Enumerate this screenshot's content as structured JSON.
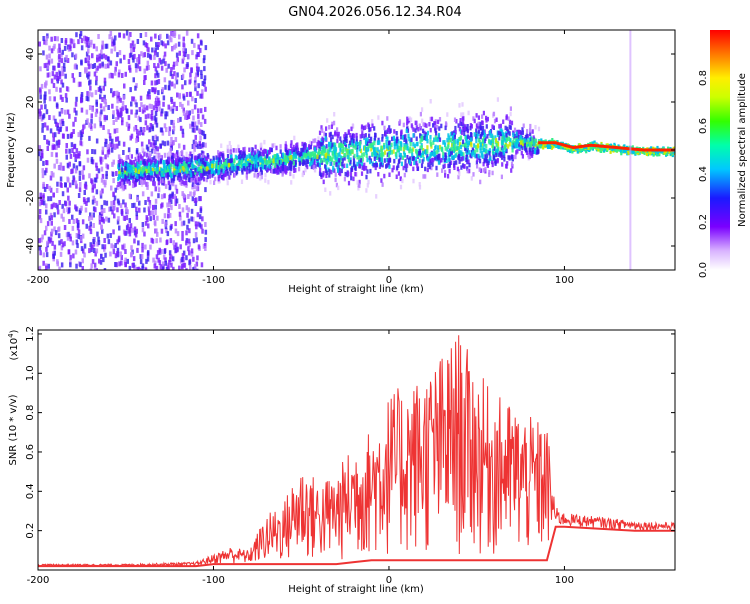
{
  "title": "GN04.2026.056.12.34.R04",
  "colors": {
    "snr_line": "#ee3333",
    "axis": "#000000",
    "background": "#ffffff"
  },
  "chart_data": [
    {
      "type": "heatmap",
      "title": "GN04.2026.056.12.34.R04",
      "xlabel": "Height of straight line (km)",
      "ylabel": "Frequency (Hz)",
      "xlim": [
        -200,
        163
      ],
      "ylim": [
        -50,
        50
      ],
      "xticks": [
        "-200",
        "-100",
        "0",
        "100"
      ],
      "yticks": [
        "40",
        "20",
        "0",
        "-20",
        "-40"
      ],
      "colorbar": {
        "label": "Normalized spectral amplitude",
        "range": [
          0,
          1
        ],
        "ticks": [
          "0.0",
          "0.2",
          "0.4",
          "0.6",
          "0.8"
        ]
      },
      "ridge": {
        "x": [
          -155,
          -120,
          -100,
          -80,
          -60,
          -40,
          -20,
          0,
          20,
          40,
          60,
          70,
          85,
          95,
          105,
          115,
          130,
          145,
          163
        ],
        "freq": [
          -8,
          -7,
          -6,
          -4,
          -3,
          -1,
          0,
          1,
          2,
          3,
          3,
          5,
          3,
          3,
          1,
          2,
          1,
          0,
          0
        ]
      }
    },
    {
      "type": "area",
      "xlabel": "Height of straight line (km)",
      "ylabel": "SNR (10 * v/v)",
      "multiplier": "(x10",
      "multiplier_exp": "4",
      "xlim": [
        -200,
        163
      ],
      "ylim": [
        0,
        1.22
      ],
      "xticks": [
        "-200",
        "-100",
        "0",
        "100"
      ],
      "yticks": [
        "1.2",
        "1.0",
        "0.8",
        "0.6",
        "0.4",
        "0.2"
      ],
      "series": [
        {
          "x": [
            -200,
            -150,
            -110,
            -100,
            -90,
            -80,
            -70,
            -60,
            -50,
            -40,
            -30,
            -20,
            -10,
            0,
            10,
            20,
            30,
            40,
            50,
            60,
            70,
            80,
            90,
            95,
            100,
            120,
            140,
            163
          ],
          "upper": [
            0.03,
            0.03,
            0.04,
            0.08,
            0.12,
            0.1,
            0.28,
            0.35,
            0.55,
            0.45,
            0.5,
            0.65,
            0.72,
            0.9,
            0.95,
            1.0,
            1.1,
            1.22,
            1.02,
            0.9,
            0.85,
            0.78,
            0.75,
            0.32,
            0.29,
            0.27,
            0.25,
            0.24
          ],
          "lower": [
            0.02,
            0.02,
            0.02,
            0.03,
            0.03,
            0.03,
            0.03,
            0.03,
            0.03,
            0.03,
            0.03,
            0.04,
            0.05,
            0.05,
            0.05,
            0.05,
            0.05,
            0.05,
            0.05,
            0.05,
            0.05,
            0.05,
            0.05,
            0.22,
            0.22,
            0.21,
            0.2,
            0.2
          ]
        }
      ]
    }
  ]
}
